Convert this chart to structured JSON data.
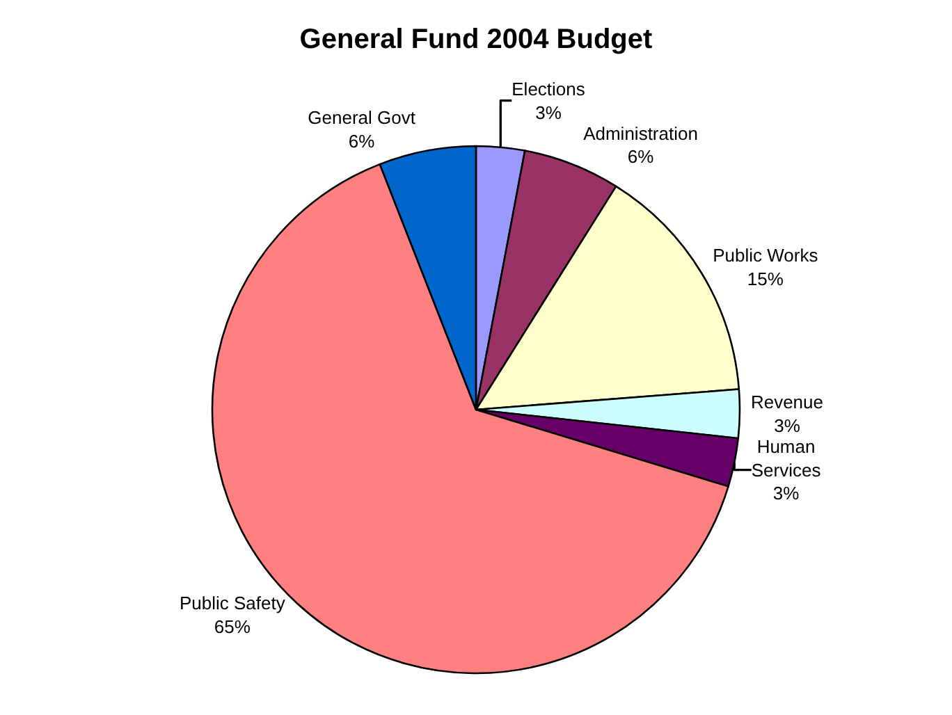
{
  "chart_data": {
    "type": "pie",
    "title": "General Fund 2004 Budget",
    "categories": [
      "Elections",
      "Administration",
      "Public Works",
      "Revenue",
      "Human Services",
      "Public Safety",
      "General Govt"
    ],
    "values": [
      3,
      6,
      15,
      3,
      3,
      65,
      6
    ],
    "value_labels": [
      "3%",
      "6%",
      "15%",
      "3%",
      "3%",
      "65%",
      "6%"
    ],
    "colors": [
      "#9999ff",
      "#993366",
      "#ffffcc",
      "#ccffff",
      "#660066",
      "#ff8080",
      "#0066cc"
    ],
    "legend": false
  }
}
